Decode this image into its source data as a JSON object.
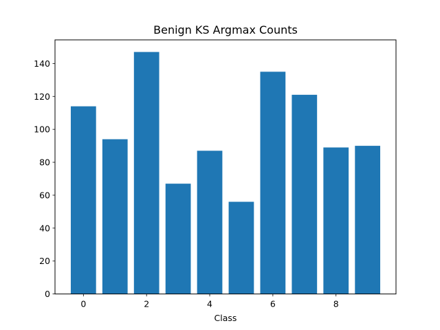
{
  "chart_data": {
    "type": "bar",
    "title": "Benign KS Argmax Counts",
    "xlabel": "Class",
    "ylabel": "",
    "categories": [
      0,
      1,
      2,
      3,
      4,
      5,
      6,
      7,
      8,
      9
    ],
    "values": [
      114,
      94,
      147,
      67,
      87,
      56,
      135,
      121,
      89,
      90
    ],
    "xlim": [
      -0.9,
      9.9
    ],
    "ylim": [
      0,
      154.35
    ],
    "xticks": [
      0,
      2,
      4,
      6,
      8
    ],
    "yticks": [
      0,
      20,
      40,
      60,
      80,
      100,
      120,
      140
    ],
    "bar_color": "#1f77b4",
    "grid": false,
    "legend": "none"
  }
}
